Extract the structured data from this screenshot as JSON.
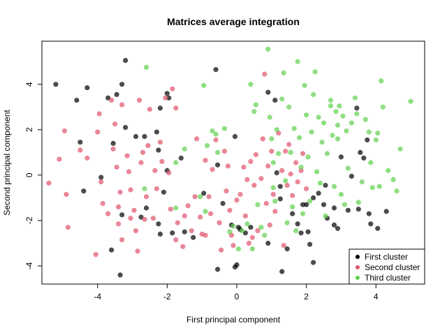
{
  "chart_data": {
    "type": "scatter",
    "title": "Matrices average integration",
    "xlabel": "First principal component",
    "ylabel": "Second principal component",
    "xlim": [
      -5.6,
      5.4
    ],
    "ylim": [
      -4.8,
      5.9
    ],
    "xticks": [
      -4,
      -2,
      0,
      2,
      4
    ],
    "yticks": [
      -4,
      -2,
      0,
      2,
      4
    ],
    "grid": false,
    "legend_position": "bottom-right",
    "series": [
      {
        "name": "First cluster",
        "color": "#000000",
        "points": [
          [
            -5.2,
            4.0
          ],
          [
            -4.6,
            3.3
          ],
          [
            -4.3,
            3.85
          ],
          [
            -3.7,
            3.4
          ],
          [
            -3.45,
            3.55
          ],
          [
            -3.3,
            4.0
          ],
          [
            -3.2,
            5.05
          ],
          [
            -3.55,
            1.4
          ],
          [
            -3.9,
            -0.1
          ],
          [
            -4.4,
            -0.7
          ],
          [
            -4.5,
            1.45
          ],
          [
            -3.2,
            2.1
          ],
          [
            -2.9,
            1.7
          ],
          [
            -2.65,
            1.7
          ],
          [
            -2.2,
            2.95
          ],
          [
            -1.95,
            3.4
          ],
          [
            -2.0,
            3.6
          ],
          [
            -2.3,
            1.9
          ],
          [
            -2.25,
            1.1
          ],
          [
            -2.0,
            0.2
          ],
          [
            -1.6,
            0.75
          ],
          [
            -2.1,
            -0.75
          ],
          [
            -2.6,
            -1.45
          ],
          [
            -2.75,
            -1.85
          ],
          [
            -2.25,
            -2.15
          ],
          [
            -2.2,
            -2.6
          ],
          [
            -1.5,
            -2.5
          ],
          [
            -1.25,
            -2.75
          ],
          [
            -0.95,
            -0.8
          ],
          [
            -0.6,
            4.65
          ],
          [
            -0.55,
            0.45
          ],
          [
            -0.4,
            -1.25
          ],
          [
            -0.55,
            -4.15
          ],
          [
            -0.05,
            -4.05
          ],
          [
            0.0,
            -3.95
          ],
          [
            0.1,
            -2.4
          ],
          [
            0.05,
            -2.3
          ],
          [
            -0.05,
            1.7
          ],
          [
            0.25,
            -2.55
          ],
          [
            -0.15,
            -2.2
          ],
          [
            0.4,
            -2.3
          ],
          [
            0.9,
            3.65
          ],
          [
            1.1,
            3.3
          ],
          [
            1.15,
            0.1
          ],
          [
            1.25,
            -0.5
          ],
          [
            1.3,
            -4.25
          ],
          [
            1.45,
            -3.25
          ],
          [
            1.6,
            -1.7
          ],
          [
            1.75,
            -2.15
          ],
          [
            1.85,
            -2.55
          ],
          [
            1.9,
            -1.3
          ],
          [
            2.0,
            -1.3
          ],
          [
            2.05,
            -2.5
          ],
          [
            2.1,
            -3.05
          ],
          [
            2.2,
            -1.0
          ],
          [
            2.2,
            -3.85
          ],
          [
            2.35,
            -0.8
          ],
          [
            2.5,
            -1.3
          ],
          [
            2.55,
            -0.45
          ],
          [
            2.6,
            -1.9
          ],
          [
            2.8,
            -1.45
          ],
          [
            2.8,
            -2.2
          ],
          [
            2.9,
            -2.35
          ],
          [
            3.0,
            0.8
          ],
          [
            3.2,
            -1.55
          ],
          [
            3.3,
            -0.05
          ],
          [
            3.45,
            2.95
          ],
          [
            3.55,
            1.0
          ],
          [
            3.65,
            0.75
          ],
          [
            3.75,
            1.55
          ],
          [
            3.8,
            -1.7
          ],
          [
            3.85,
            -2.15
          ],
          [
            3.5,
            -1.5
          ],
          [
            4.05,
            -2.35
          ],
          [
            4.3,
            -1.6
          ],
          [
            -3.6,
            -3.3
          ],
          [
            -3.3,
            -1.75
          ],
          [
            -3.35,
            -4.4
          ],
          [
            -1.85,
            -2.55
          ],
          [
            0.9,
            -3.0
          ],
          [
            1.25,
            -1.05
          ]
        ]
      },
      {
        "name": "Second cluster",
        "color": "#DF536B",
        "points": [
          [
            -5.4,
            -0.35
          ],
          [
            -5.1,
            0.7
          ],
          [
            -4.95,
            1.95
          ],
          [
            -4.9,
            -0.85
          ],
          [
            -4.85,
            -2.3
          ],
          [
            -4.5,
            1.1
          ],
          [
            -4.3,
            0.75
          ],
          [
            -4.0,
            1.9
          ],
          [
            -3.95,
            2.7
          ],
          [
            -3.9,
            -0.3
          ],
          [
            -3.85,
            -1.25
          ],
          [
            -3.7,
            -1.7
          ],
          [
            -3.6,
            3.3
          ],
          [
            -3.55,
            1.15
          ],
          [
            -3.5,
            2.25
          ],
          [
            -3.45,
            0.35
          ],
          [
            -3.4,
            -1.4
          ],
          [
            -3.35,
            -0.75
          ],
          [
            -3.3,
            -2.85
          ],
          [
            -3.3,
            3.1
          ],
          [
            -3.15,
            0.85
          ],
          [
            -3.1,
            0.15
          ],
          [
            -3.05,
            -0.65
          ],
          [
            -2.95,
            -1.55
          ],
          [
            -2.9,
            -2.45
          ],
          [
            -2.85,
            -3.35
          ],
          [
            -2.8,
            3.3
          ],
          [
            -2.75,
            0.55
          ],
          [
            -2.7,
            1.0
          ],
          [
            -2.6,
            -0.95
          ],
          [
            -2.55,
            1.3
          ],
          [
            -2.5,
            2.9
          ],
          [
            -2.4,
            -1.9
          ],
          [
            -2.35,
            0.2
          ],
          [
            -2.3,
            -0.6
          ],
          [
            -2.2,
            1.45
          ],
          [
            -2.15,
            0.6
          ],
          [
            -2.05,
            3.4
          ],
          [
            -1.95,
            0.1
          ],
          [
            -1.9,
            -1.5
          ],
          [
            -1.85,
            3.8
          ],
          [
            -1.75,
            2.95
          ],
          [
            -1.7,
            -2.1
          ],
          [
            -1.5,
            -1.8
          ],
          [
            -1.4,
            -1.35
          ],
          [
            -1.3,
            -2.45
          ],
          [
            -1.2,
            -0.95
          ],
          [
            -1.15,
            1.6
          ],
          [
            -1.05,
            -1.85
          ],
          [
            -1.0,
            -2.6
          ],
          [
            -0.9,
            0.65
          ],
          [
            -0.8,
            -0.95
          ],
          [
            -0.75,
            -1.7
          ],
          [
            -0.7,
            0.25
          ],
          [
            -0.6,
            1.55
          ],
          [
            -0.5,
            -2.1
          ],
          [
            -0.45,
            -3.3
          ],
          [
            -0.35,
            1.05
          ],
          [
            -0.3,
            -0.7
          ],
          [
            -0.25,
            0.4
          ],
          [
            -0.2,
            -1.55
          ],
          [
            -0.15,
            -2.65
          ],
          [
            -0.1,
            -3.1
          ],
          [
            0.0,
            -1.1
          ],
          [
            0.1,
            -0.85
          ],
          [
            0.2,
            0.35
          ],
          [
            0.25,
            -1.8
          ],
          [
            0.3,
            -0.2
          ],
          [
            0.35,
            -3.0
          ],
          [
            0.4,
            0.6
          ],
          [
            0.45,
            -2.75
          ],
          [
            0.5,
            -0.45
          ],
          [
            0.55,
            0.9
          ],
          [
            0.6,
            -2.45
          ],
          [
            0.7,
            -0.15
          ],
          [
            0.75,
            1.6
          ],
          [
            0.8,
            4.45
          ],
          [
            0.85,
            -1.25
          ],
          [
            0.9,
            0.4
          ],
          [
            0.95,
            -2.2
          ],
          [
            1.0,
            1.05
          ],
          [
            1.05,
            -0.85
          ],
          [
            1.1,
            -1.6
          ],
          [
            1.2,
            1.85
          ],
          [
            1.3,
            0.2
          ],
          [
            1.35,
            -3.1
          ],
          [
            1.4,
            1.05
          ],
          [
            1.45,
            -0.45
          ],
          [
            1.5,
            1.35
          ],
          [
            1.55,
            0.05
          ],
          [
            1.6,
            -0.9
          ],
          [
            1.7,
            0.55
          ],
          [
            1.75,
            -0.3
          ],
          [
            1.85,
            0.2
          ],
          [
            1.9,
            0.95
          ],
          [
            2.0,
            -0.6
          ],
          [
            -2.65,
            -1.95
          ],
          [
            -3.05,
            -1.9
          ],
          [
            -4.05,
            -3.5
          ],
          [
            -3.4,
            -2.15
          ],
          [
            -1.55,
            -3.15
          ],
          [
            -0.9,
            -2.65
          ],
          [
            -1.75,
            -2.85
          ]
        ]
      },
      {
        "name": "Third cluster",
        "color": "#61D04F",
        "points": [
          [
            -2.6,
            4.75
          ],
          [
            -2.65,
            -0.6
          ],
          [
            -1.75,
            0.55
          ],
          [
            -1.75,
            -1.45
          ],
          [
            -1.5,
            1.15
          ],
          [
            -1.05,
            -0.95
          ],
          [
            -0.95,
            3.95
          ],
          [
            -0.9,
            -1.6
          ],
          [
            -0.85,
            1.3
          ],
          [
            -0.7,
            1.95
          ],
          [
            -0.6,
            1.8
          ],
          [
            -0.55,
            1.0
          ],
          [
            -0.35,
            2.05
          ],
          [
            -0.2,
            -2.5
          ],
          [
            -0.1,
            -2.25
          ],
          [
            0.05,
            -3.25
          ],
          [
            0.15,
            -2.45
          ],
          [
            0.3,
            -2.15
          ],
          [
            0.4,
            4.0
          ],
          [
            0.45,
            -3.25
          ],
          [
            0.5,
            2.8
          ],
          [
            0.55,
            3.1
          ],
          [
            0.6,
            -1.3
          ],
          [
            0.7,
            -2.3
          ],
          [
            0.8,
            -2.65
          ],
          [
            0.9,
            5.55
          ],
          [
            0.95,
            2.55
          ],
          [
            1.0,
            1.6
          ],
          [
            1.05,
            -0.55
          ],
          [
            1.1,
            -1.15
          ],
          [
            1.15,
            2.0
          ],
          [
            1.2,
            0.95
          ],
          [
            1.3,
            3.35
          ],
          [
            1.35,
            4.5
          ],
          [
            1.4,
            -0.25
          ],
          [
            1.45,
            -2.1
          ],
          [
            1.5,
            3.0
          ],
          [
            1.55,
            1.0
          ],
          [
            1.6,
            -1.4
          ],
          [
            1.65,
            2.05
          ],
          [
            1.7,
            -2.45
          ],
          [
            1.75,
            5.0
          ],
          [
            1.8,
            1.65
          ],
          [
            1.85,
            0.35
          ],
          [
            1.9,
            -1.7
          ],
          [
            1.95,
            3.95
          ],
          [
            2.0,
            2.65
          ],
          [
            2.05,
            0.8
          ],
          [
            2.1,
            -1.15
          ],
          [
            2.15,
            1.9
          ],
          [
            2.2,
            3.55
          ],
          [
            2.25,
            4.55
          ],
          [
            2.3,
            0.15
          ],
          [
            2.35,
            2.55
          ],
          [
            2.4,
            -0.35
          ],
          [
            2.45,
            1.45
          ],
          [
            2.5,
            2.3
          ],
          [
            2.55,
            -1.8
          ],
          [
            2.6,
            0.95
          ],
          [
            2.7,
            3.3
          ],
          [
            2.75,
            1.75
          ],
          [
            2.8,
            -0.5
          ],
          [
            2.85,
            2.8
          ],
          [
            2.9,
            1.6
          ],
          [
            2.95,
            3.05
          ],
          [
            3.0,
            -0.85
          ],
          [
            3.05,
            2.6
          ],
          [
            3.1,
            -1.3
          ],
          [
            3.15,
            1.95
          ],
          [
            3.2,
            0.3
          ],
          [
            3.3,
            2.3
          ],
          [
            3.4,
            3.4
          ],
          [
            3.45,
            2.7
          ],
          [
            3.5,
            -1.2
          ],
          [
            3.6,
            -0.3
          ],
          [
            3.7,
            2.45
          ],
          [
            3.8,
            1.9
          ],
          [
            3.85,
            0.55
          ],
          [
            3.9,
            -0.55
          ],
          [
            4.0,
            1.55
          ],
          [
            4.05,
            1.85
          ],
          [
            4.1,
            -0.5
          ],
          [
            4.15,
            4.15
          ],
          [
            4.2,
            3.0
          ],
          [
            4.35,
            0.2
          ],
          [
            4.5,
            -0.2
          ],
          [
            4.6,
            -0.7
          ],
          [
            4.7,
            1.15
          ],
          [
            5.0,
            3.25
          ],
          [
            2.7,
            3.05
          ],
          [
            2.9,
            2.2
          ],
          [
            1.05,
            0.55
          ]
        ]
      }
    ]
  }
}
